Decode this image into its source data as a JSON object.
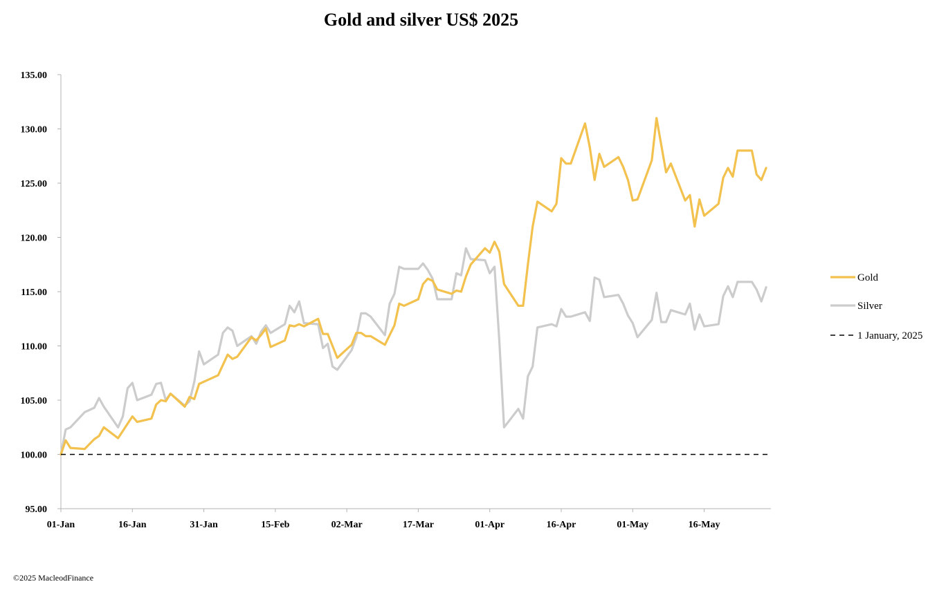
{
  "chart_data": {
    "type": "line",
    "title": "Gold and silver  US$ 2025",
    "xlabel": "",
    "ylabel": "",
    "ylim": [
      95,
      135
    ],
    "yticks": [
      "95.00",
      "100.00",
      "105.00",
      "110.00",
      "115.00",
      "120.00",
      "125.00",
      "130.00",
      "135.00"
    ],
    "ytick_values": [
      95,
      100,
      105,
      110,
      115,
      120,
      125,
      130,
      135
    ],
    "xlim": [
      "2025-01-01",
      "2025-05-30"
    ],
    "xticks": [
      {
        "date": "2025-01-01",
        "label": "01-Jan"
      },
      {
        "date": "2025-01-16",
        "label": "16-Jan"
      },
      {
        "date": "2025-01-31",
        "label": "31-Jan"
      },
      {
        "date": "2025-02-15",
        "label": "15-Feb"
      },
      {
        "date": "2025-03-02",
        "label": "02-Mar"
      },
      {
        "date": "2025-03-17",
        "label": "17-Mar"
      },
      {
        "date": "2025-04-01",
        "label": "01-Apr"
      },
      {
        "date": "2025-04-16",
        "label": "16-Apr"
      },
      {
        "date": "2025-05-01",
        "label": "01-May"
      },
      {
        "date": "2025-05-16",
        "label": "16-May"
      }
    ],
    "grid": false,
    "legend_position": "right",
    "series": [
      {
        "name": "Gold",
        "color": "#F2C14E",
        "style": "solid",
        "points": [
          [
            "2025-01-01",
            100.0
          ],
          [
            "2025-01-02",
            101.3
          ],
          [
            "2025-01-03",
            100.6
          ],
          [
            "2025-01-06",
            100.5
          ],
          [
            "2025-01-08",
            101.4
          ],
          [
            "2025-01-09",
            101.7
          ],
          [
            "2025-01-10",
            102.5
          ],
          [
            "2025-01-13",
            101.5
          ],
          [
            "2025-01-16",
            103.5
          ],
          [
            "2025-01-17",
            103.0
          ],
          [
            "2025-01-20",
            103.3
          ],
          [
            "2025-01-21",
            104.6
          ],
          [
            "2025-01-22",
            105.0
          ],
          [
            "2025-01-23",
            104.9
          ],
          [
            "2025-01-24",
            105.6
          ],
          [
            "2025-01-27",
            104.4
          ],
          [
            "2025-01-28",
            105.3
          ],
          [
            "2025-01-29",
            105.1
          ],
          [
            "2025-01-30",
            106.5
          ],
          [
            "2025-01-31",
            106.7
          ],
          [
            "2025-02-03",
            107.3
          ],
          [
            "2025-02-05",
            109.2
          ],
          [
            "2025-02-06",
            108.8
          ],
          [
            "2025-02-07",
            109.0
          ],
          [
            "2025-02-10",
            110.8
          ],
          [
            "2025-02-11",
            110.5
          ],
          [
            "2025-02-12",
            111.0
          ],
          [
            "2025-02-13",
            111.6
          ],
          [
            "2025-02-14",
            109.9
          ],
          [
            "2025-02-17",
            110.5
          ],
          [
            "2025-02-18",
            111.9
          ],
          [
            "2025-02-19",
            111.8
          ],
          [
            "2025-02-20",
            112.0
          ],
          [
            "2025-02-21",
            111.8
          ],
          [
            "2025-02-24",
            112.5
          ],
          [
            "2025-02-25",
            111.1
          ],
          [
            "2025-02-26",
            111.1
          ],
          [
            "2025-02-28",
            108.9
          ],
          [
            "2025-03-03",
            110.1
          ],
          [
            "2025-03-04",
            111.2
          ],
          [
            "2025-03-05",
            111.2
          ],
          [
            "2025-03-06",
            110.9
          ],
          [
            "2025-03-07",
            110.9
          ],
          [
            "2025-03-10",
            110.1
          ],
          [
            "2025-03-12",
            111.9
          ],
          [
            "2025-03-13",
            113.9
          ],
          [
            "2025-03-14",
            113.7
          ],
          [
            "2025-03-17",
            114.3
          ],
          [
            "2025-03-18",
            115.7
          ],
          [
            "2025-03-19",
            116.2
          ],
          [
            "2025-03-20",
            116.0
          ],
          [
            "2025-03-21",
            115.2
          ],
          [
            "2025-03-24",
            114.8
          ],
          [
            "2025-03-25",
            115.1
          ],
          [
            "2025-03-26",
            115.0
          ],
          [
            "2025-03-27",
            116.4
          ],
          [
            "2025-03-28",
            117.5
          ],
          [
            "2025-03-31",
            119.0
          ],
          [
            "2025-04-01",
            118.6
          ],
          [
            "2025-04-02",
            119.6
          ],
          [
            "2025-04-03",
            118.7
          ],
          [
            "2025-04-04",
            115.7
          ],
          [
            "2025-04-07",
            113.7
          ],
          [
            "2025-04-08",
            113.7
          ],
          [
            "2025-04-09",
            117.5
          ],
          [
            "2025-04-10",
            121.0
          ],
          [
            "2025-04-11",
            123.3
          ],
          [
            "2025-04-14",
            122.4
          ],
          [
            "2025-04-15",
            123.1
          ],
          [
            "2025-04-16",
            127.3
          ],
          [
            "2025-04-17",
            126.8
          ],
          [
            "2025-04-18",
            126.8
          ],
          [
            "2025-04-21",
            130.5
          ],
          [
            "2025-04-22",
            128.3
          ],
          [
            "2025-04-23",
            125.3
          ],
          [
            "2025-04-24",
            127.7
          ],
          [
            "2025-04-25",
            126.5
          ],
          [
            "2025-04-28",
            127.4
          ],
          [
            "2025-04-29",
            126.5
          ],
          [
            "2025-04-30",
            125.3
          ],
          [
            "2025-05-01",
            123.4
          ],
          [
            "2025-05-02",
            123.5
          ],
          [
            "2025-05-05",
            127.1
          ],
          [
            "2025-05-06",
            131.0
          ],
          [
            "2025-05-07",
            128.5
          ],
          [
            "2025-05-08",
            126.0
          ],
          [
            "2025-05-09",
            126.8
          ],
          [
            "2025-05-12",
            123.4
          ],
          [
            "2025-05-13",
            123.9
          ],
          [
            "2025-05-14",
            121.0
          ],
          [
            "2025-05-15",
            123.5
          ],
          [
            "2025-05-16",
            122.0
          ],
          [
            "2025-05-19",
            123.1
          ],
          [
            "2025-05-20",
            125.5
          ],
          [
            "2025-05-21",
            126.4
          ],
          [
            "2025-05-22",
            125.6
          ],
          [
            "2025-05-23",
            128.0
          ],
          [
            "2025-05-26",
            128.0
          ],
          [
            "2025-05-27",
            125.8
          ],
          [
            "2025-05-28",
            125.3
          ],
          [
            "2025-05-29",
            126.4
          ]
        ]
      },
      {
        "name": "Silver",
        "color": "#CCCCCC",
        "style": "solid",
        "points": [
          [
            "2025-01-01",
            100.0
          ],
          [
            "2025-01-02",
            102.3
          ],
          [
            "2025-01-03",
            102.5
          ],
          [
            "2025-01-06",
            103.9
          ],
          [
            "2025-01-08",
            104.3
          ],
          [
            "2025-01-09",
            105.2
          ],
          [
            "2025-01-10",
            104.4
          ],
          [
            "2025-01-13",
            102.5
          ],
          [
            "2025-01-14",
            103.5
          ],
          [
            "2025-01-15",
            106.1
          ],
          [
            "2025-01-16",
            106.6
          ],
          [
            "2025-01-17",
            105.0
          ],
          [
            "2025-01-20",
            105.5
          ],
          [
            "2025-01-21",
            106.5
          ],
          [
            "2025-01-22",
            106.6
          ],
          [
            "2025-01-23",
            105.0
          ],
          [
            "2025-01-24",
            105.6
          ],
          [
            "2025-01-27",
            104.5
          ],
          [
            "2025-01-28",
            104.9
          ],
          [
            "2025-01-29",
            106.7
          ],
          [
            "2025-01-30",
            109.5
          ],
          [
            "2025-01-31",
            108.3
          ],
          [
            "2025-02-03",
            109.2
          ],
          [
            "2025-02-04",
            111.2
          ],
          [
            "2025-02-05",
            111.7
          ],
          [
            "2025-02-06",
            111.4
          ],
          [
            "2025-02-07",
            110.0
          ],
          [
            "2025-02-10",
            110.9
          ],
          [
            "2025-02-11",
            110.2
          ],
          [
            "2025-02-12",
            111.3
          ],
          [
            "2025-02-13",
            111.9
          ],
          [
            "2025-02-14",
            111.2
          ],
          [
            "2025-02-17",
            112.0
          ],
          [
            "2025-02-18",
            113.7
          ],
          [
            "2025-02-19",
            113.1
          ],
          [
            "2025-02-20",
            114.1
          ],
          [
            "2025-02-21",
            112.1
          ],
          [
            "2025-02-24",
            112.0
          ],
          [
            "2025-02-25",
            109.8
          ],
          [
            "2025-02-26",
            110.2
          ],
          [
            "2025-02-27",
            108.1
          ],
          [
            "2025-02-28",
            107.8
          ],
          [
            "2025-03-03",
            109.6
          ],
          [
            "2025-03-04",
            110.8
          ],
          [
            "2025-03-05",
            113.0
          ],
          [
            "2025-03-06",
            113.0
          ],
          [
            "2025-03-07",
            112.7
          ],
          [
            "2025-03-10",
            111.0
          ],
          [
            "2025-03-11",
            113.9
          ],
          [
            "2025-03-12",
            114.8
          ],
          [
            "2025-03-13",
            117.3
          ],
          [
            "2025-03-14",
            117.1
          ],
          [
            "2025-03-17",
            117.1
          ],
          [
            "2025-03-18",
            117.6
          ],
          [
            "2025-03-19",
            117.0
          ],
          [
            "2025-03-20",
            116.2
          ],
          [
            "2025-03-21",
            114.3
          ],
          [
            "2025-03-24",
            114.3
          ],
          [
            "2025-03-25",
            116.7
          ],
          [
            "2025-03-26",
            116.5
          ],
          [
            "2025-03-27",
            119.0
          ],
          [
            "2025-03-28",
            118.0
          ],
          [
            "2025-03-31",
            117.9
          ],
          [
            "2025-04-01",
            116.7
          ],
          [
            "2025-04-02",
            117.3
          ],
          [
            "2025-04-03",
            110.5
          ],
          [
            "2025-04-04",
            102.5
          ],
          [
            "2025-04-07",
            104.2
          ],
          [
            "2025-04-08",
            103.3
          ],
          [
            "2025-04-09",
            107.2
          ],
          [
            "2025-04-10",
            108.1
          ],
          [
            "2025-04-11",
            111.7
          ],
          [
            "2025-04-14",
            112.0
          ],
          [
            "2025-04-15",
            111.8
          ],
          [
            "2025-04-16",
            113.4
          ],
          [
            "2025-04-17",
            112.7
          ],
          [
            "2025-04-18",
            112.7
          ],
          [
            "2025-04-21",
            113.1
          ],
          [
            "2025-04-22",
            112.3
          ],
          [
            "2025-04-23",
            116.3
          ],
          [
            "2025-04-24",
            116.1
          ],
          [
            "2025-04-25",
            114.5
          ],
          [
            "2025-04-28",
            114.7
          ],
          [
            "2025-04-29",
            113.9
          ],
          [
            "2025-04-30",
            112.8
          ],
          [
            "2025-05-01",
            112.1
          ],
          [
            "2025-05-02",
            110.8
          ],
          [
            "2025-05-05",
            112.4
          ],
          [
            "2025-05-06",
            114.9
          ],
          [
            "2025-05-07",
            112.2
          ],
          [
            "2025-05-08",
            112.2
          ],
          [
            "2025-05-09",
            113.3
          ],
          [
            "2025-05-12",
            112.9
          ],
          [
            "2025-05-13",
            113.9
          ],
          [
            "2025-05-14",
            111.5
          ],
          [
            "2025-05-15",
            112.9
          ],
          [
            "2025-05-16",
            111.8
          ],
          [
            "2025-05-19",
            112.0
          ],
          [
            "2025-05-20",
            114.6
          ],
          [
            "2025-05-21",
            115.5
          ],
          [
            "2025-05-22",
            114.5
          ],
          [
            "2025-05-23",
            115.9
          ],
          [
            "2025-05-26",
            115.9
          ],
          [
            "2025-05-27",
            115.2
          ],
          [
            "2025-05-28",
            114.1
          ],
          [
            "2025-05-29",
            115.4
          ]
        ]
      },
      {
        "name": "1 January, 2025",
        "color": "#000000",
        "style": "dashed",
        "points": [
          [
            "2025-01-01",
            100.0
          ],
          [
            "2025-05-30",
            100.0
          ]
        ]
      }
    ]
  },
  "footer": {
    "copyright": "©2025 MacleodFinance"
  }
}
